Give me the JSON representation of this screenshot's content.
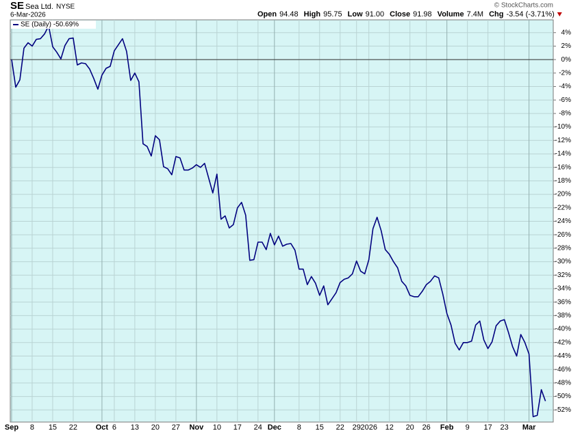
{
  "header": {
    "symbol": "SE",
    "name": "Sea Ltd.",
    "exchange": "NYSE",
    "date": "6-Mar-2026",
    "source": "© StockCharts.com",
    "quote": [
      {
        "label": "Open",
        "value": "94.48"
      },
      {
        "label": "High",
        "value": "95.75"
      },
      {
        "label": "Low",
        "value": "91.00"
      },
      {
        "label": "Close",
        "value": "91.98"
      },
      {
        "label": "Volume",
        "value": "7.4M"
      },
      {
        "label": "Chg",
        "value": "-3.54 (-3.71%)"
      }
    ]
  },
  "chart_data": {
    "type": "line",
    "series": [
      {
        "name": "SE (Daily) -50.69%",
        "color": "#00007f",
        "values": [
          0,
          -4.1,
          -3.0,
          1.7,
          2.5,
          2.0,
          3.0,
          3.1,
          3.8,
          5.0,
          1.9,
          1.1,
          0.1,
          2.1,
          3.1,
          3.2,
          -0.8,
          -0.5,
          -0.6,
          -1.4,
          -2.8,
          -4.4,
          -2.3,
          -1.3,
          -1.0,
          1.3,
          2.2,
          3.1,
          1.2,
          -3.1,
          -2.0,
          -3.3,
          -12.5,
          -12.9,
          -14.3,
          -11.3,
          -11.9,
          -15.9,
          -16.2,
          -17.1,
          -14.4,
          -14.6,
          -16.4,
          -16.4,
          -16.1,
          -15.6,
          -16.0,
          -15.4,
          -17.6,
          -19.8,
          -17.0,
          -23.7,
          -23.2,
          -25.0,
          -24.5,
          -22.0,
          -21.2,
          -23.1,
          -29.8,
          -29.7,
          -27.1,
          -27.1,
          -28.2,
          -25.8,
          -27.5,
          -26.2,
          -27.7,
          -27.4,
          -27.3,
          -28.3,
          -31.1,
          -31.1,
          -33.4,
          -32.2,
          -33.2,
          -35.0,
          -33.6,
          -36.4,
          -35.5,
          -34.6,
          -33.1,
          -32.6,
          -32.4,
          -31.8,
          -29.9,
          -31.4,
          -31.8,
          -29.7,
          -25.1,
          -23.4,
          -25.4,
          -28.2,
          -28.9,
          -30.0,
          -30.9,
          -32.9,
          -33.6,
          -35.0,
          -35.2,
          -35.2,
          -34.4,
          -33.4,
          -32.9,
          -32.1,
          -32.4,
          -34.8,
          -37.7,
          -39.4,
          -42.1,
          -43.1,
          -42.0,
          -42.0,
          -41.8,
          -39.4,
          -38.8,
          -41.6,
          -42.9,
          -41.9,
          -39.5,
          -38.8,
          -38.6,
          -40.5,
          -42.6,
          -44.0,
          -40.8,
          -42.0,
          -43.7,
          -53.0,
          -52.8,
          -49.0,
          -50.69
        ]
      }
    ],
    "xlim": [
      -0.33,
      131.9
    ],
    "xticks": [
      {
        "value": 0,
        "label": "Sep"
      },
      {
        "value": 5,
        "label": "8"
      },
      {
        "value": 10,
        "label": "15"
      },
      {
        "value": 15,
        "label": "22"
      },
      {
        "value": 22,
        "label": "Oct"
      },
      {
        "value": 25,
        "label": "6"
      },
      {
        "value": 30,
        "label": "13"
      },
      {
        "value": 35,
        "label": "20"
      },
      {
        "value": 40,
        "label": "27"
      },
      {
        "value": 45,
        "label": "Nov"
      },
      {
        "value": 50,
        "label": "10"
      },
      {
        "value": 55,
        "label": "17"
      },
      {
        "value": 60,
        "label": "24"
      },
      {
        "value": 64,
        "label": "Dec"
      },
      {
        "value": 70,
        "label": "8"
      },
      {
        "value": 75,
        "label": "15"
      },
      {
        "value": 80,
        "label": "22"
      },
      {
        "value": 84,
        "label": "29"
      },
      {
        "value": 87,
        "label": "2026"
      },
      {
        "value": 92,
        "label": "12"
      },
      {
        "value": 97,
        "label": "20"
      },
      {
        "value": 101,
        "label": "26"
      },
      {
        "value": 106,
        "label": "Feb"
      },
      {
        "value": 111,
        "label": "9"
      },
      {
        "value": 116,
        "label": "17"
      },
      {
        "value": 120,
        "label": "23"
      },
      {
        "value": 126,
        "label": "Mar"
      }
    ],
    "ylim": [
      -53.8,
      5.9
    ],
    "yticks": [
      {
        "value": 4,
        "label": "4%"
      },
      {
        "value": 2,
        "label": "2%"
      },
      {
        "value": 0,
        "label": "0%"
      },
      {
        "value": -2,
        "label": "-2%"
      },
      {
        "value": -4,
        "label": "-4%"
      },
      {
        "value": -6,
        "label": "-6%"
      },
      {
        "value": -8,
        "label": "-8%"
      },
      {
        "value": -10,
        "label": "-10%"
      },
      {
        "value": -12,
        "label": "-12%"
      },
      {
        "value": -14,
        "label": "-14%"
      },
      {
        "value": -16,
        "label": "-16%"
      },
      {
        "value": -18,
        "label": "-18%"
      },
      {
        "value": -20,
        "label": "-20%"
      },
      {
        "value": -22,
        "label": "-22%"
      },
      {
        "value": -24,
        "label": "-24%"
      },
      {
        "value": -26,
        "label": "-26%"
      },
      {
        "value": -28,
        "label": "-28%"
      },
      {
        "value": -30,
        "label": "-30%"
      },
      {
        "value": -32,
        "label": "-32%"
      },
      {
        "value": -34,
        "label": "-34%"
      },
      {
        "value": -36,
        "label": "-36%"
      },
      {
        "value": -38,
        "label": "-38%"
      },
      {
        "value": -40,
        "label": "-40%"
      },
      {
        "value": -42,
        "label": "-42%"
      },
      {
        "value": -44,
        "label": "-44%"
      },
      {
        "value": -46,
        "label": "-46%"
      },
      {
        "value": -48,
        "label": "-48%"
      },
      {
        "value": -50,
        "label": "-50%"
      },
      {
        "value": -52,
        "label": "-52%"
      }
    ],
    "grid": true
  }
}
